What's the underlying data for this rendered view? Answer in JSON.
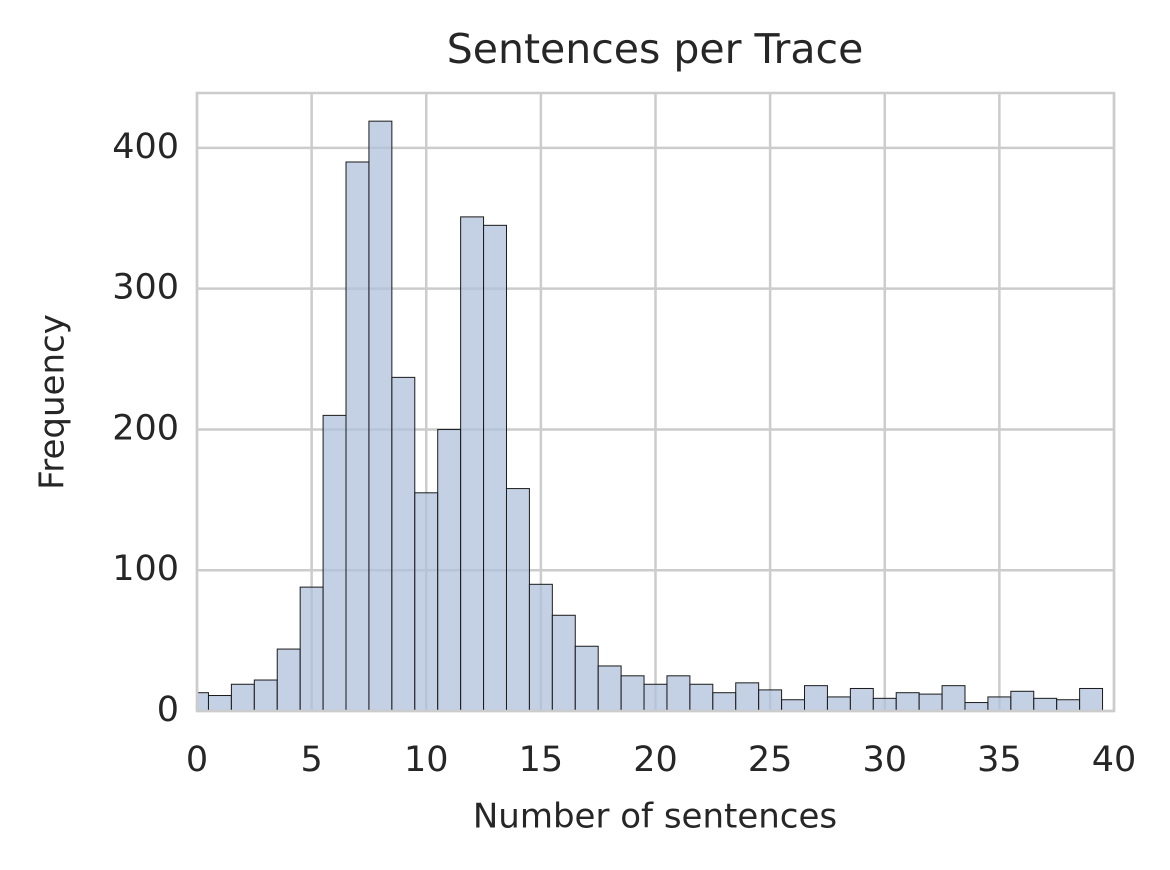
{
  "chart_data": {
    "type": "histogram",
    "title": "Sentences per Trace",
    "x_label": "Number of sentences",
    "y_label": "Frequency",
    "bins": [
      -0.5,
      0.5,
      1.5,
      2.5,
      3.5,
      4.5,
      5.5,
      6.5,
      7.5,
      8.5,
      9.5,
      10.5,
      11.5,
      12.5,
      13.5,
      14.5,
      15.5,
      16.5,
      17.5,
      18.5,
      19.5,
      20.5,
      21.5,
      22.5,
      23.5,
      24.5,
      25.5,
      26.5,
      27.5,
      28.5,
      29.5,
      30.5,
      31.5,
      32.5,
      33.5,
      34.5,
      35.5,
      36.5,
      37.5,
      38.5,
      39.5
    ],
    "counts": [
      13,
      11,
      19,
      22,
      44,
      88,
      210,
      390,
      419,
      237,
      155,
      200,
      351,
      345,
      158,
      90,
      68,
      46,
      32,
      25,
      19,
      25,
      19,
      13,
      20,
      15,
      8,
      18,
      10,
      16,
      9,
      13,
      12,
      18,
      6,
      10,
      14,
      9,
      8,
      16
    ],
    "color": "#b0c2dc",
    "xlim": [
      0,
      40
    ],
    "ylim": [
      0,
      439
    ],
    "xticks": [
      0,
      5,
      10,
      15,
      20,
      25,
      30,
      35,
      40
    ],
    "yticks": [
      0,
      100,
      200,
      300,
      400
    ],
    "grid": true
  }
}
